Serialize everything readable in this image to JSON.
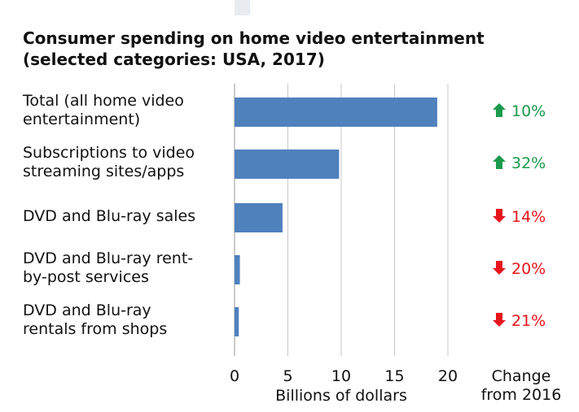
{
  "chart_data": {
    "type": "bar",
    "orientation": "horizontal",
    "title_lines": [
      "Consumer spending on home video entertainment",
      "(selected categories: USA, 2017)"
    ],
    "categories": [
      [
        "Total (all home video",
        "entertainment)"
      ],
      [
        "Subscriptions to video",
        "streaming sites/apps"
      ],
      [
        "DVD and Blu-ray sales"
      ],
      [
        "DVD and Blu-ray rent-",
        "by-post services"
      ],
      [
        "DVD and Blu-ray",
        "rentals from shops"
      ]
    ],
    "values": [
      19.0,
      9.8,
      4.5,
      0.5,
      0.4
    ],
    "changes": [
      {
        "direction": "up",
        "text": "10%"
      },
      {
        "direction": "up",
        "text": "32%"
      },
      {
        "direction": "down",
        "text": "14%"
      },
      {
        "direction": "down",
        "text": "20%"
      },
      {
        "direction": "down",
        "text": "21%"
      }
    ],
    "xticks": [
      "0",
      "5",
      "10",
      "15",
      "20"
    ],
    "xlim": [
      0,
      20
    ],
    "xlabel": "Billions of dollars",
    "change_header": [
      "Change",
      "from 2016"
    ],
    "grid": true,
    "colors": {
      "bar": "#4f81bd",
      "up": "#1a9a4a",
      "down": "#e8141c",
      "grid": "#c8c8c8"
    }
  }
}
